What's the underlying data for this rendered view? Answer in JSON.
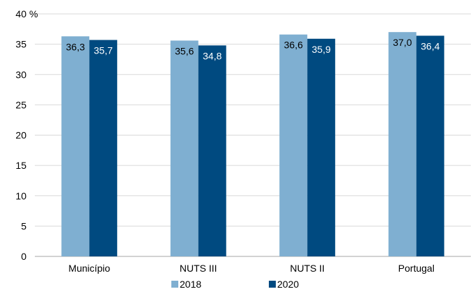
{
  "chart_data": {
    "type": "bar",
    "title": "",
    "xlabel": "",
    "ylabel": "",
    "y_unit": "%",
    "ylim": [
      0,
      40
    ],
    "yticks": [
      0,
      5,
      10,
      15,
      20,
      25,
      30,
      35,
      40
    ],
    "grid": true,
    "legend_position": "bottom",
    "categories": [
      "Município",
      "NUTS III",
      "NUTS II",
      "Portugal"
    ],
    "series": [
      {
        "name": "2018",
        "values": [
          36.3,
          35.6,
          36.6,
          37.0
        ],
        "labels": [
          "36,3",
          "35,6",
          "36,6",
          "37,0"
        ],
        "color": "#7fafd1"
      },
      {
        "name": "2020",
        "values": [
          35.7,
          34.8,
          35.9,
          36.4
        ],
        "labels": [
          "35,7",
          "34,8",
          "35,9",
          "36,4"
        ],
        "color": "#004a80"
      }
    ]
  }
}
